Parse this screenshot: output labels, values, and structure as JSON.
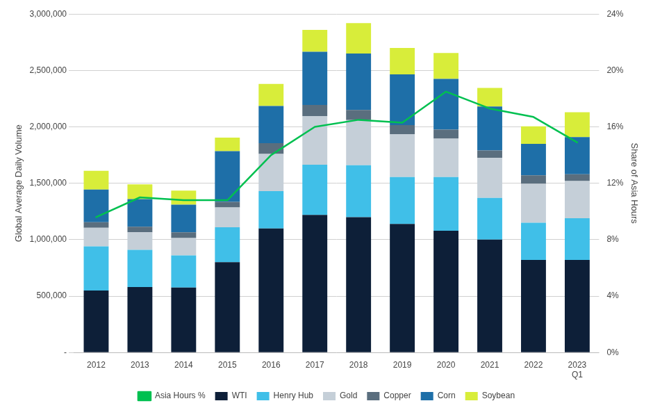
{
  "chart_data": {
    "type": "bar",
    "stacked": true,
    "grid": true,
    "legend": "bottom",
    "categories": [
      "2012",
      "2013",
      "2014",
      "2015",
      "2016",
      "2017",
      "2018",
      "2019",
      "2020",
      "2021",
      "2022",
      "2023\nQ1"
    ],
    "ylabel": "Global Average Daily Volume",
    "y2label": "Share of Asia Hours",
    "ylim": [
      0,
      3000000
    ],
    "yticks": [
      {
        "value": 0,
        "label": "-"
      },
      {
        "value": 500000,
        "label": "500,000"
      },
      {
        "value": 1000000,
        "label": "1,000,000"
      },
      {
        "value": 1500000,
        "label": "1,500,000"
      },
      {
        "value": 2000000,
        "label": "2,000,000"
      },
      {
        "value": 2500000,
        "label": "2,500,000"
      },
      {
        "value": 3000000,
        "label": "3,000,000"
      }
    ],
    "y2lim": [
      0,
      24
    ],
    "y2ticks": [
      {
        "value": 0,
        "label": "0%"
      },
      {
        "value": 4,
        "label": "4%"
      },
      {
        "value": 8,
        "label": "8%"
      },
      {
        "value": 12,
        "label": "12%"
      },
      {
        "value": 16,
        "label": "16%"
      },
      {
        "value": 20,
        "label": "20%"
      },
      {
        "value": 24,
        "label": "24%"
      }
    ],
    "series": [
      {
        "name": "WTI",
        "type": "bar",
        "color": "#0d1f38",
        "values": [
          550000,
          580000,
          575000,
          800000,
          1100000,
          1220000,
          1200000,
          1140000,
          1080000,
          1000000,
          820000,
          820000
        ]
      },
      {
        "name": "Henry Hub",
        "type": "bar",
        "color": "#40bfe8",
        "values": [
          390000,
          330000,
          285000,
          310000,
          330000,
          445000,
          460000,
          415000,
          475000,
          370000,
          330000,
          370000
        ]
      },
      {
        "name": "Gold",
        "type": "bar",
        "color": "#c5cfd8",
        "values": [
          165000,
          155000,
          155000,
          175000,
          330000,
          430000,
          400000,
          380000,
          340000,
          355000,
          345000,
          330000
        ]
      },
      {
        "name": "Copper",
        "type": "bar",
        "color": "#5a6e7e",
        "values": [
          50000,
          50000,
          50000,
          50000,
          95000,
          100000,
          90000,
          80000,
          80000,
          65000,
          75000,
          60000
        ]
      },
      {
        "name": "Corn",
        "type": "bar",
        "color": "#1e6fa8",
        "values": [
          290000,
          245000,
          245000,
          450000,
          330000,
          470000,
          500000,
          450000,
          450000,
          390000,
          280000,
          330000
        ]
      },
      {
        "name": "Soybean",
        "type": "bar",
        "color": "#d8ed3a",
        "values": [
          165000,
          130000,
          125000,
          120000,
          195000,
          195000,
          270000,
          235000,
          230000,
          165000,
          155000,
          220000
        ]
      },
      {
        "name": "Asia Hours %",
        "type": "line",
        "axis": "y2",
        "color": "#00c050",
        "values": [
          9.6,
          11.0,
          10.8,
          10.8,
          14.0,
          16.0,
          16.5,
          16.3,
          18.5,
          17.3,
          16.7,
          14.9
        ]
      }
    ]
  }
}
